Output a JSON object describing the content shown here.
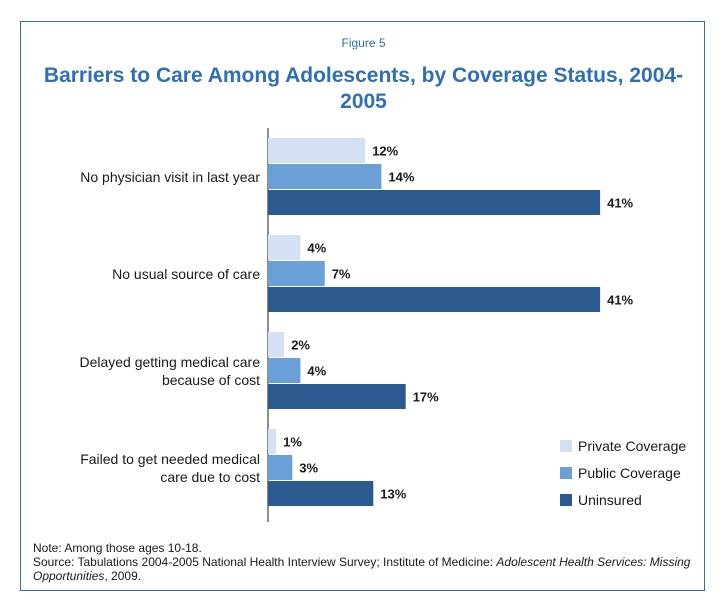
{
  "figure_label": "Figure 5",
  "chart_data": {
    "type": "bar",
    "orientation": "horizontal",
    "title": "Barriers to Care Among Adolescents, by Coverage Status, 2004-2005",
    "categories": [
      "No physician visit in last year",
      "No usual source of care",
      "Delayed getting medical care because of cost",
      "Failed to get needed medical care due to cost"
    ],
    "categories_display": [
      [
        "No physician visit in last year"
      ],
      [
        "No usual source of care"
      ],
      [
        "Delayed getting medical care",
        "because of cost"
      ],
      [
        "Failed to get needed medical",
        "care due to cost"
      ]
    ],
    "series": [
      {
        "name": "Private Coverage",
        "values": [
          12,
          4,
          2,
          1
        ],
        "color": "#d4e1f4"
      },
      {
        "name": "Public Coverage",
        "values": [
          14,
          7,
          4,
          3
        ],
        "color": "#6a9fd8"
      },
      {
        "name": "Uninsured",
        "values": [
          41,
          41,
          17,
          13
        ],
        "color": "#2a5a90"
      }
    ],
    "value_suffix": "%",
    "xlim": [
      0,
      50
    ],
    "grid": false,
    "legend_position": "bottom-right"
  },
  "notes": {
    "note": "Note:  Among those ages 10-18.",
    "source_prefix": "Source: Tabulations 2004-2005 National Health Interview Survey; Institute of Medicine: ",
    "source_title": "Adolescent Health Services: Missing Opportunities",
    "source_suffix": ", 2009."
  }
}
